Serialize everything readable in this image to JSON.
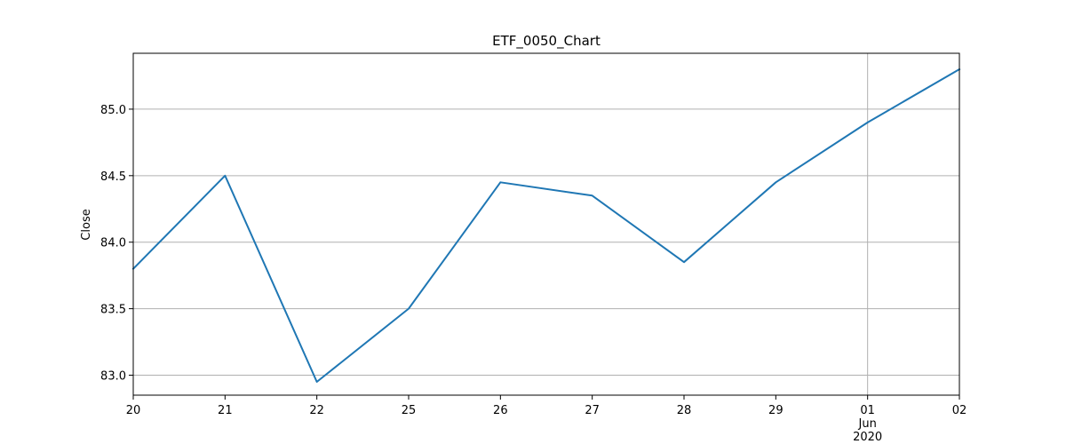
{
  "chart_data": {
    "type": "line",
    "title": "ETF_0050_Chart",
    "xlabel": "",
    "ylabel": "Close",
    "x": [
      "2020-05-20",
      "2020-05-21",
      "2020-05-22",
      "2020-05-25",
      "2020-05-26",
      "2020-05-27",
      "2020-05-28",
      "2020-05-29",
      "2020-06-01",
      "2020-06-02"
    ],
    "x_tick_labels": [
      "20",
      "21",
      "22",
      "25",
      "26",
      "27",
      "28",
      "29",
      "01",
      "02"
    ],
    "x_month_label": {
      "at": "2020-06-01",
      "month": "Jun",
      "year": "2020"
    },
    "series": [
      {
        "values": [
          83.8,
          84.5,
          82.95,
          83.5,
          84.45,
          84.35,
          83.85,
          84.45,
          84.9,
          85.3
        ]
      }
    ],
    "ylim": [
      82.85,
      85.42
    ],
    "y_ticks": [
      83.0,
      83.5,
      84.0,
      84.5,
      85.0
    ],
    "y_tick_labels": [
      "83.0",
      "83.5",
      "84.0",
      "84.5",
      "85.0"
    ],
    "grid": true,
    "line_color": "#1f77b4",
    "grid_color": "#b0b0b0",
    "legend": "none"
  }
}
